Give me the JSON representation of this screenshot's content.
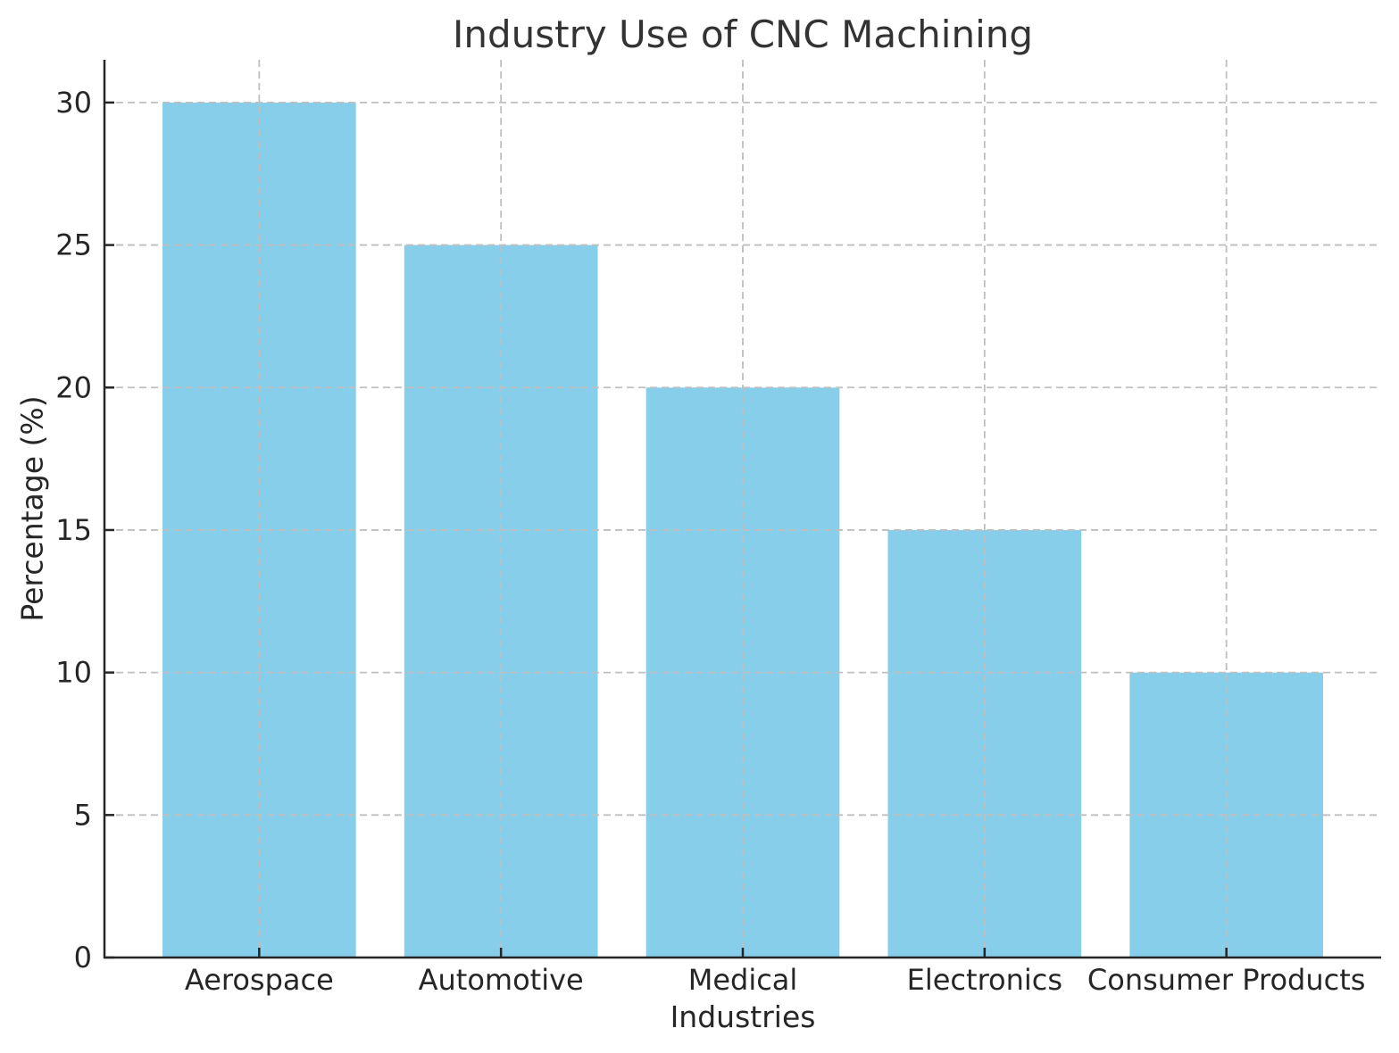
{
  "chart_data": {
    "type": "bar",
    "title": "Industry Use of CNC Machining",
    "xlabel": "Industries",
    "ylabel": "Percentage (%)",
    "categories": [
      "Aerospace",
      "Automotive",
      "Medical",
      "Electronics",
      "Consumer Products"
    ],
    "values": [
      30,
      25,
      20,
      15,
      10
    ],
    "yticks": [
      0,
      5,
      10,
      15,
      20,
      25,
      30
    ],
    "ylim": [
      0,
      31.5
    ],
    "bar_color": "#87CEEB",
    "grid": {
      "on": true,
      "style": "dashed",
      "color": "#bfbfbf",
      "horizontal": true,
      "vertical": true
    },
    "spine_color": "#262626",
    "text_color": "#262626",
    "legend": "none",
    "background": "#ffffff"
  }
}
